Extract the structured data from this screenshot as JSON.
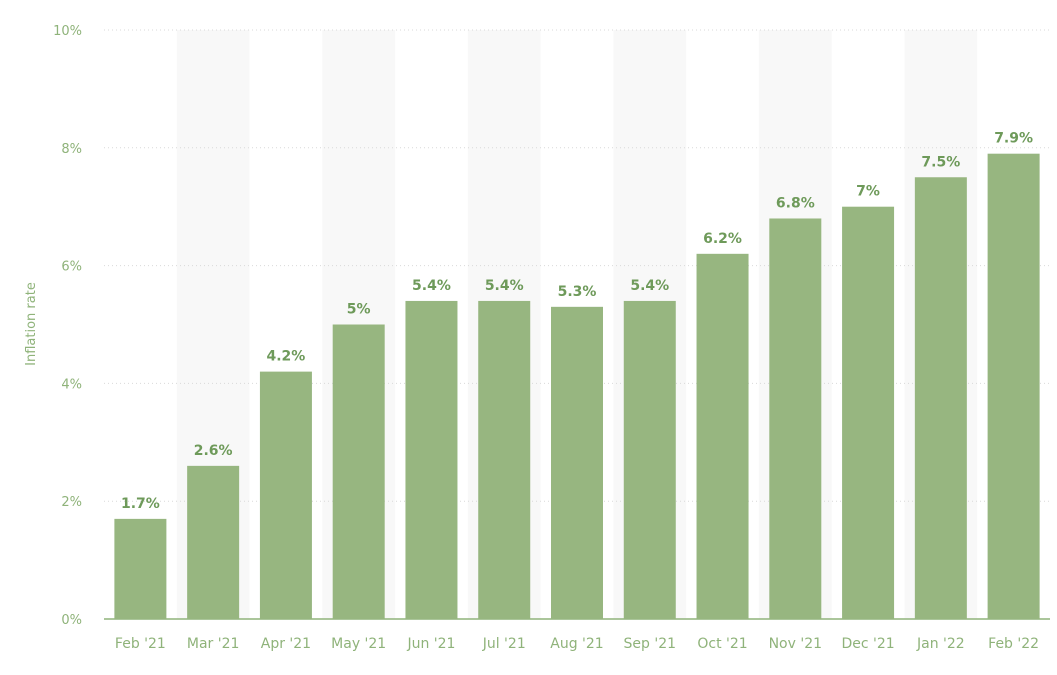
{
  "chart_data": {
    "type": "bar",
    "ylabel": "Inflation rate",
    "xlabel": "",
    "title": "",
    "ylim": [
      0,
      10
    ],
    "yticks": [
      0,
      2,
      4,
      6,
      8,
      10
    ],
    "ytick_labels": [
      "0%",
      "2%",
      "4%",
      "6%",
      "8%",
      "10%"
    ],
    "categories": [
      "Feb '21",
      "Mar '21",
      "Apr '21",
      "May '21",
      "Jun '21",
      "Jul '21",
      "Aug '21",
      "Sep '21",
      "Oct '21",
      "Nov '21",
      "Dec '21",
      "Jan '22",
      "Feb '22"
    ],
    "values": [
      1.7,
      2.6,
      4.2,
      5,
      5.4,
      5.4,
      5.3,
      5.4,
      6.2,
      6.8,
      7,
      7.5,
      7.9
    ],
    "data_labels": [
      "1.7%",
      "2.6%",
      "4.2%",
      "5%",
      "5.4%",
      "5.4%",
      "5.3%",
      "5.4%",
      "6.2%",
      "6.8%",
      "7%",
      "7.5%",
      "7.9%"
    ],
    "grid": true,
    "legend": "none",
    "colors": {
      "bar": "#97b680",
      "grid": "#d9d9d9",
      "band": "#f8f8f8",
      "axis": "#8fb37a",
      "label": "#6e9a5a"
    }
  }
}
